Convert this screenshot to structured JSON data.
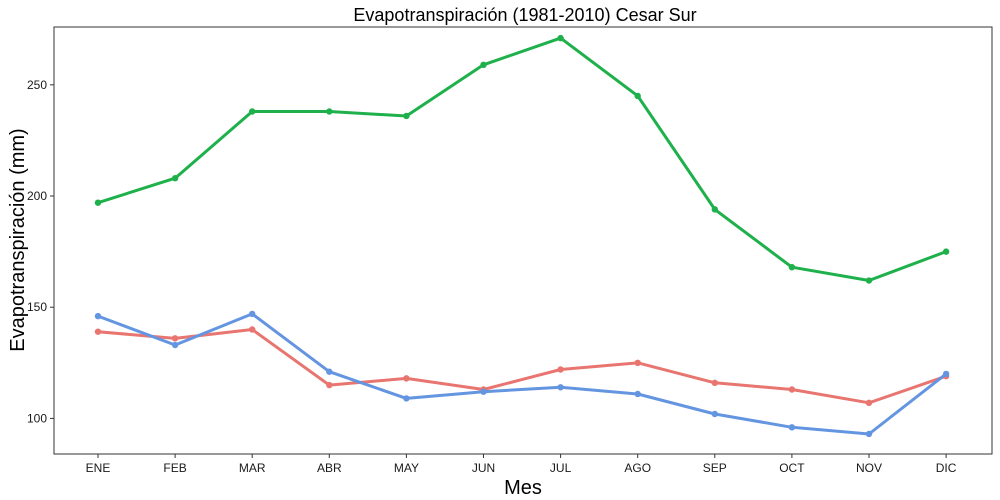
{
  "chart_data": {
    "type": "line",
    "title": "Evapotranspiración (1981-2010)  Cesar Sur",
    "xlabel": "Mes",
    "ylabel": "Evapotranspiración (mm)",
    "categories": [
      "ENE",
      "FEB",
      "MAR",
      "ABR",
      "MAY",
      "JUN",
      "JUL",
      "AGO",
      "SEP",
      "OCT",
      "NOV",
      "DIC"
    ],
    "ylim": [
      84,
      276
    ],
    "yticks": [
      100,
      150,
      200,
      250
    ],
    "grid": false,
    "legend": "none",
    "series": [
      {
        "color": "#e8756f",
        "values": [
          139,
          136,
          140,
          115,
          118,
          113,
          122,
          125,
          116,
          113,
          107,
          119
        ]
      },
      {
        "color": "#6495e1",
        "values": [
          146,
          133,
          147,
          121,
          109,
          112,
          114,
          111,
          102,
          96,
          93,
          120
        ]
      },
      {
        "color": "#1eb04b",
        "values": [
          197,
          208,
          238,
          238,
          236,
          259,
          271,
          245,
          194,
          168,
          162,
          175
        ]
      }
    ]
  }
}
